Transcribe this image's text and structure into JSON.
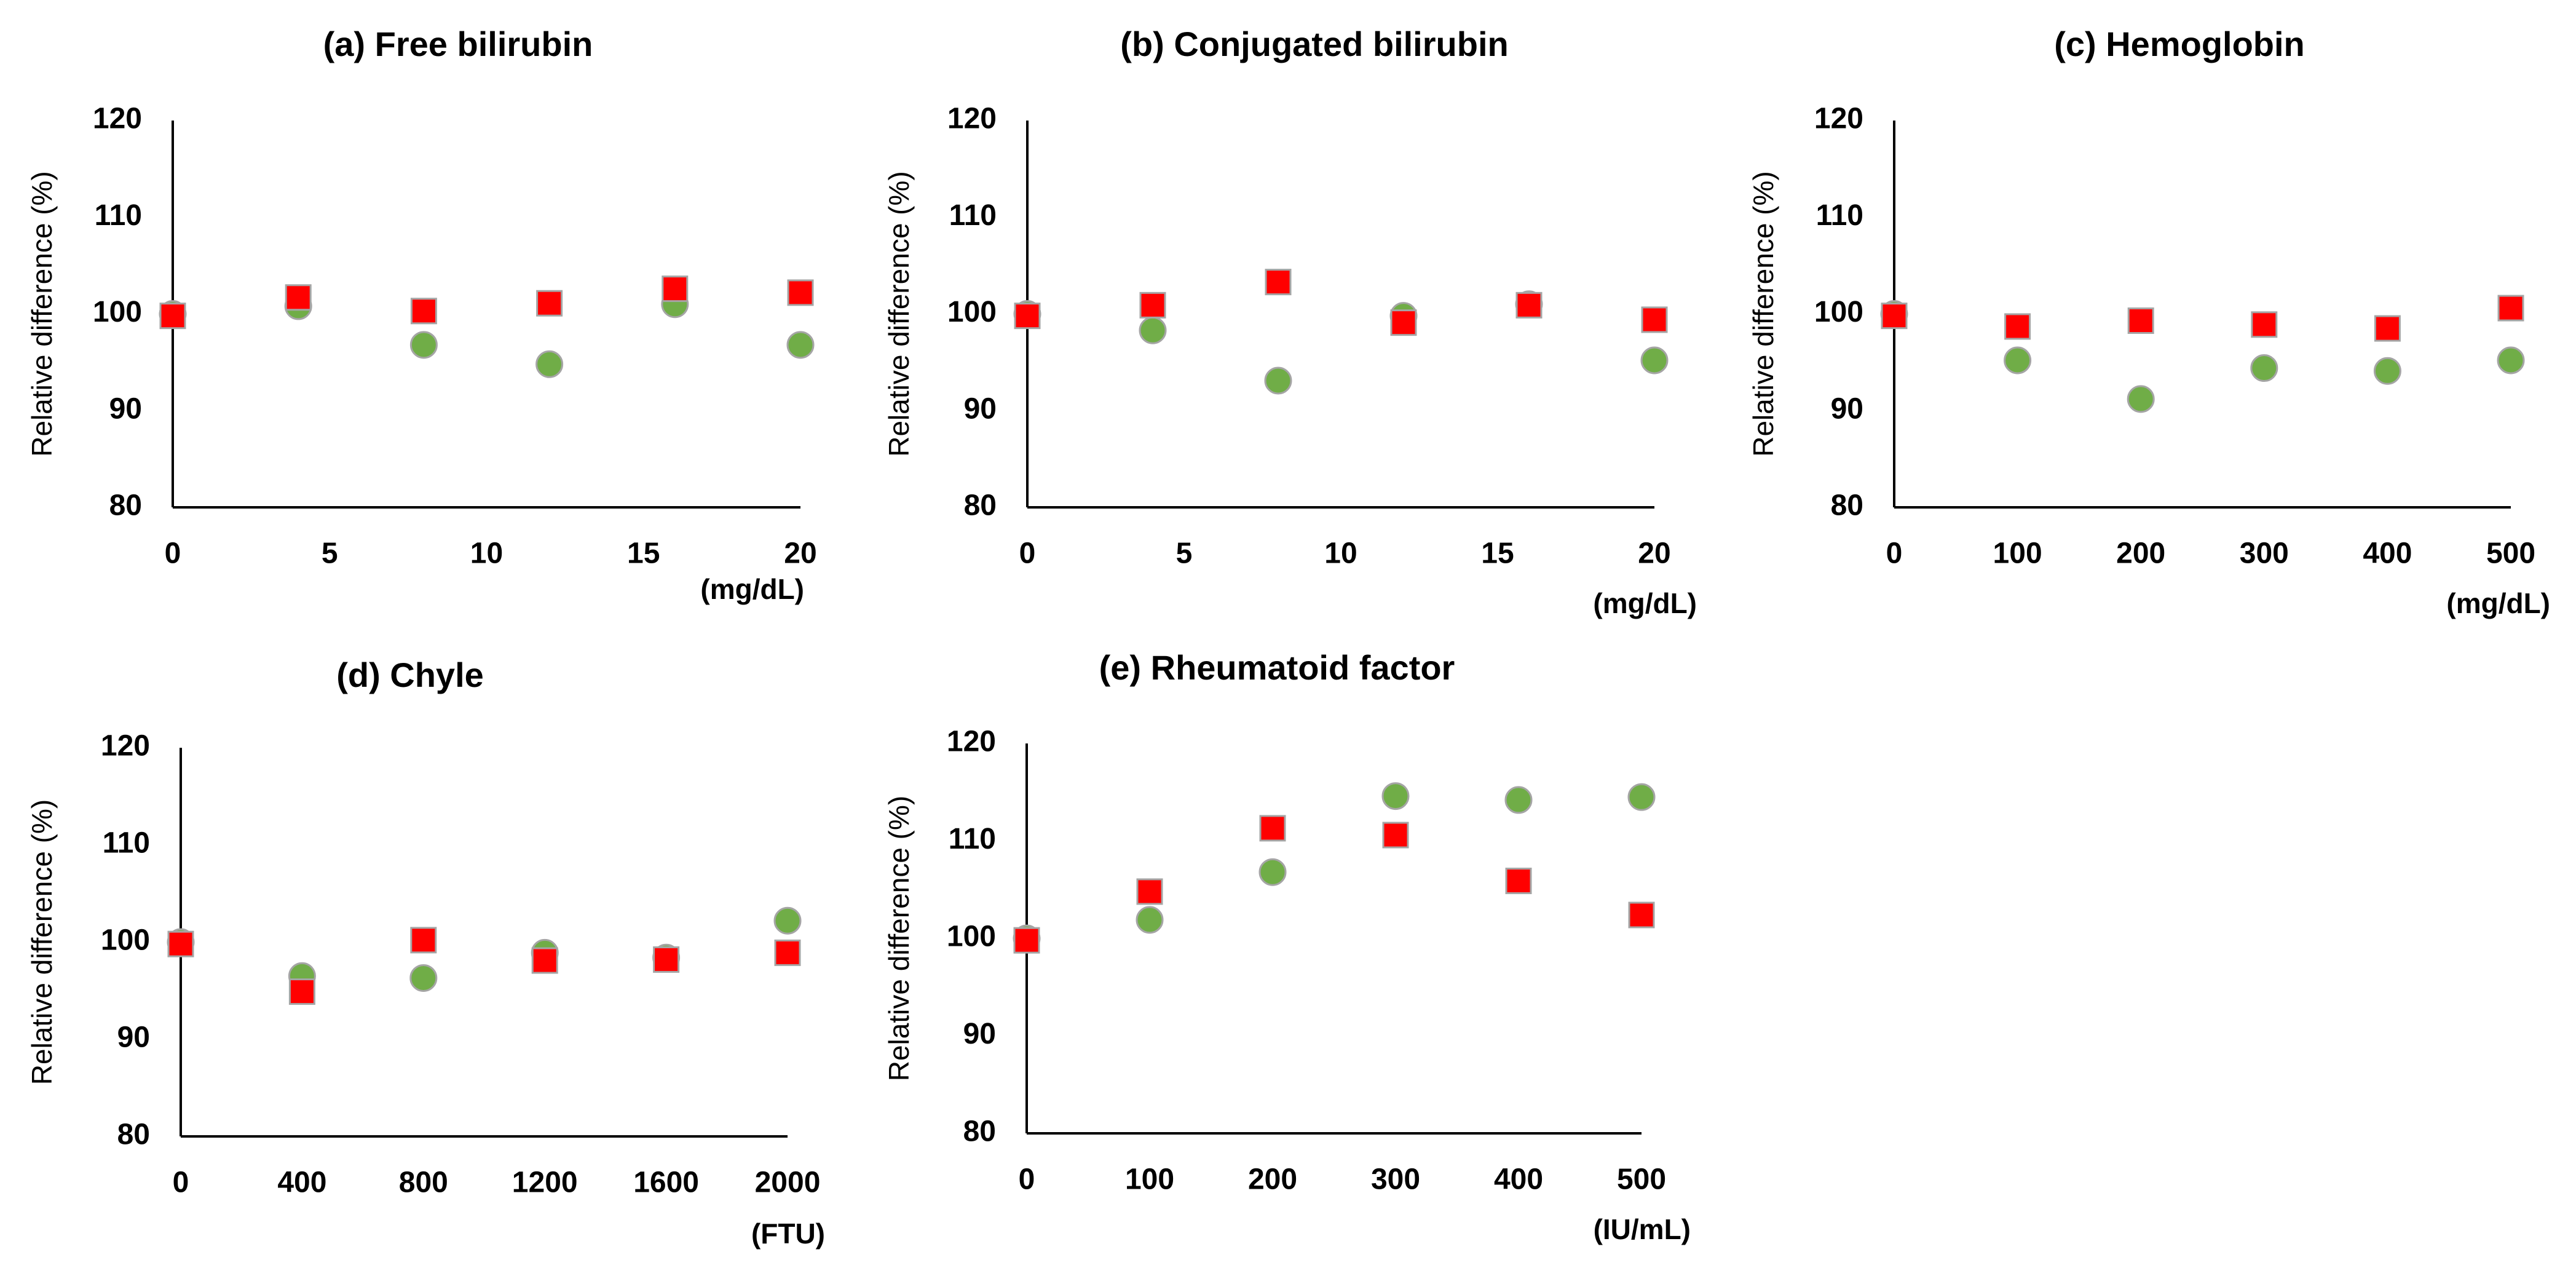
{
  "colors": {
    "circle": "#70ad47",
    "square": "#ff0000",
    "marker_edge": "#a5a5a5",
    "axis": "#000000"
  },
  "chart_data": [
    {
      "type": "scatter",
      "title": "(a) Free bilirubin",
      "ylabel": "Relative difference (%)",
      "xunit": "(mg/dL)",
      "xlim": [
        0,
        20
      ],
      "ylim": [
        80,
        120
      ],
      "xticks": [
        "0",
        "5",
        "10",
        "15",
        "20"
      ],
      "yticks": [
        "80",
        "90",
        "100",
        "110",
        "120"
      ],
      "series": [
        {
          "marker": "circle",
          "x": [
            0,
            4,
            8,
            12,
            16,
            20
          ],
          "y": [
            100,
            100.8,
            96.8,
            94.8,
            101,
            96.8
          ]
        },
        {
          "marker": "square",
          "x": [
            0,
            4,
            8,
            12,
            16,
            20
          ],
          "y": [
            99.8,
            101.7,
            100.3,
            101.1,
            102.6,
            102.2
          ]
        }
      ]
    },
    {
      "type": "scatter",
      "title": "(b) Conjugated bilirubin",
      "ylabel": "Relative difference (%)",
      "xunit": "(mg/dL)",
      "xlim": [
        0,
        20
      ],
      "ylim": [
        80,
        120
      ],
      "xticks": [
        "0",
        "5",
        "10",
        "15",
        "20"
      ],
      "yticks": [
        "80",
        "90",
        "100",
        "110",
        "120"
      ],
      "series": [
        {
          "marker": "circle",
          "x": [
            0,
            4,
            8,
            12,
            16,
            20
          ],
          "y": [
            100,
            98.3,
            93.1,
            99.8,
            101,
            95.2
          ]
        },
        {
          "marker": "square",
          "x": [
            0,
            4,
            8,
            12,
            16,
            20
          ],
          "y": [
            99.8,
            100.9,
            103.3,
            99.1,
            100.9,
            99.4
          ]
        }
      ]
    },
    {
      "type": "scatter",
      "title": "(c) Hemoglobin",
      "ylabel": "Relative difference (%)",
      "xunit": "(mg/dL)",
      "xlim": [
        0,
        500
      ],
      "ylim": [
        80,
        120
      ],
      "xticks": [
        "0",
        "100",
        "200",
        "300",
        "400",
        "500"
      ],
      "yticks": [
        "80",
        "90",
        "100",
        "110",
        "120"
      ],
      "series": [
        {
          "marker": "circle",
          "x": [
            0,
            100,
            200,
            300,
            400,
            500
          ],
          "y": [
            100,
            95.2,
            91.2,
            94.4,
            94.1,
            95.2
          ]
        },
        {
          "marker": "square",
          "x": [
            0,
            100,
            200,
            300,
            400,
            500
          ],
          "y": [
            99.8,
            98.7,
            99.3,
            98.9,
            98.5,
            100.6
          ]
        }
      ]
    },
    {
      "type": "scatter",
      "title": "(d) Chyle",
      "ylabel": "Relative difference (%)",
      "xunit": "(FTU)",
      "xlim": [
        0,
        2000
      ],
      "ylim": [
        80,
        120
      ],
      "xticks": [
        "0",
        "400",
        "800",
        "1200",
        "1600",
        "2000"
      ],
      "yticks": [
        "80",
        "90",
        "100",
        "110",
        "120"
      ],
      "series": [
        {
          "marker": "circle",
          "x": [
            0,
            400,
            800,
            1200,
            1600,
            2000
          ],
          "y": [
            100,
            96.5,
            96.3,
            98.9,
            98.4,
            102.2
          ]
        },
        {
          "marker": "square",
          "x": [
            0,
            400,
            800,
            1200,
            1600,
            2000
          ],
          "y": [
            99.8,
            94.9,
            100.2,
            98.1,
            98.2,
            98.9
          ]
        }
      ]
    },
    {
      "type": "scatter",
      "title": "(e) Rheumatoid factor",
      "ylabel": "Relative difference (%)",
      "xunit": "(IU/mL)",
      "xlim": [
        0,
        500
      ],
      "ylim": [
        80,
        120
      ],
      "xticks": [
        "0",
        "100",
        "200",
        "300",
        "400",
        "500"
      ],
      "yticks": [
        "80",
        "90",
        "100",
        "110",
        "120"
      ],
      "series": [
        {
          "marker": "circle",
          "x": [
            0,
            100,
            200,
            300,
            400,
            500
          ],
          "y": [
            100,
            101.9,
            106.8,
            114.6,
            114.2,
            114.5
          ]
        },
        {
          "marker": "square",
          "x": [
            0,
            100,
            200,
            300,
            400,
            500
          ],
          "y": [
            99.8,
            104.8,
            111.3,
            110.6,
            105.9,
            102.4
          ]
        }
      ]
    }
  ]
}
